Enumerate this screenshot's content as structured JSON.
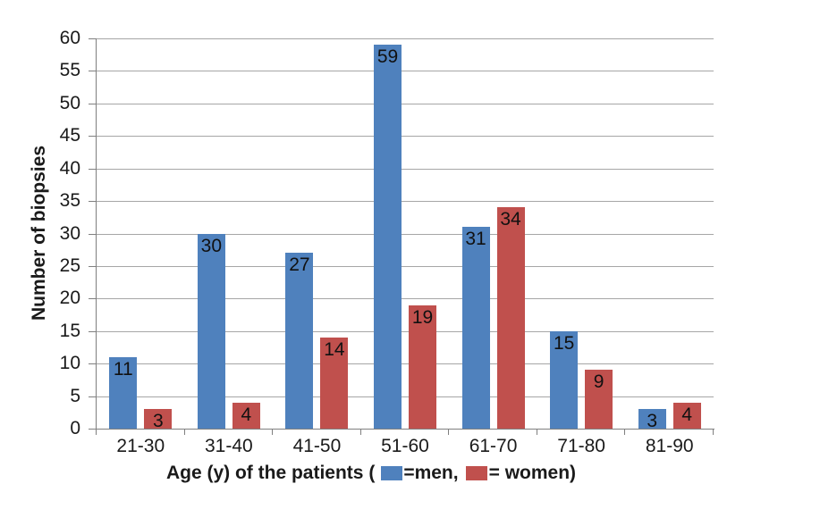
{
  "chart_data": {
    "type": "bar",
    "categories": [
      "21-30",
      "31-40",
      "41-50",
      "51-60",
      "61-70",
      "71-80",
      "81-90"
    ],
    "series": [
      {
        "name": "men",
        "color": "#4F81BD",
        "values": [
          11,
          30,
          27,
          59,
          31,
          15,
          3
        ]
      },
      {
        "name": "women",
        "color": "#C0504D",
        "values": [
          3,
          4,
          14,
          19,
          34,
          9,
          4
        ]
      }
    ],
    "title": "",
    "ylabel": "Number of biopsies",
    "xlabel_parts": {
      "prefix": "Age (y) of the patients (",
      "men": "=men,",
      "women": "= women)"
    },
    "ylim": [
      0,
      60
    ],
    "ytick_step": 5,
    "y_ticks": [
      0,
      5,
      10,
      15,
      20,
      25,
      30,
      35,
      40,
      45,
      50,
      55,
      60
    ],
    "grid": "horizontal",
    "legend_position": "inline-in-x-axis-title",
    "data_labels": "inside-end"
  },
  "colors": {
    "men": "#4F81BD",
    "women": "#C0504D",
    "gridline": "#A6A6A6",
    "axis": "#7F7F7F",
    "text": "#1A1A1A",
    "background": "#FFFFFF"
  }
}
